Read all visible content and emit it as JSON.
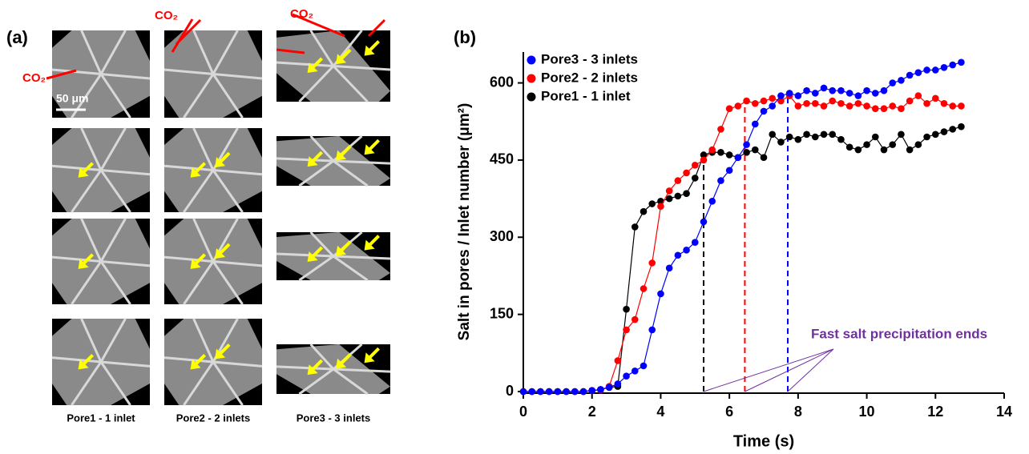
{
  "panel_a": {
    "label": "(a)",
    "co2": "CO₂",
    "scale_bar": "50 μm",
    "columns": [
      "Pore1 - 1 inlet",
      "Pore2 - 2 inlets",
      "Pore3 - 3 inlets"
    ]
  },
  "chart_data": {
    "type": "line",
    "panel_label": "(b)",
    "x_label": "Time (s)",
    "y_label": "Salt in pores / Inlet number (μm²)",
    "x": [
      0,
      0.25,
      0.5,
      0.75,
      1,
      1.25,
      1.5,
      1.75,
      2,
      2.25,
      2.5,
      2.75,
      3,
      3.25,
      3.5,
      3.75,
      4,
      4.25,
      4.5,
      4.75,
      5,
      5.25,
      5.5,
      5.75,
      6,
      6.25,
      6.5,
      6.75,
      7,
      7.25,
      7.5,
      7.75,
      8,
      8.25,
      8.5,
      8.75,
      9,
      9.25,
      9.5,
      9.75,
      10,
      10.25,
      10.5,
      10.75,
      11,
      11.25,
      11.5,
      11.75,
      12,
      12.25,
      12.5,
      12.75
    ],
    "series": [
      {
        "name": "Pore3 - 3 inlets",
        "color": "#0000ff",
        "values": [
          0,
          0,
          0,
          0,
          0,
          0,
          0,
          0,
          2,
          4,
          8,
          15,
          30,
          40,
          50,
          120,
          190,
          240,
          265,
          275,
          290,
          330,
          370,
          410,
          430,
          455,
          480,
          520,
          545,
          555,
          575,
          580,
          575,
          585,
          580,
          590,
          585,
          585,
          580,
          575,
          585,
          580,
          585,
          600,
          605,
          615,
          620,
          625,
          625,
          630,
          635,
          640
        ]
      },
      {
        "name": "Pore2 - 2 inlets",
        "color": "#ff0000",
        "values": [
          0,
          0,
          0,
          0,
          0,
          0,
          0,
          0,
          2,
          3,
          10,
          60,
          120,
          140,
          200,
          250,
          360,
          390,
          410,
          425,
          440,
          450,
          470,
          510,
          550,
          555,
          565,
          560,
          565,
          570,
          565,
          575,
          555,
          560,
          560,
          555,
          565,
          560,
          555,
          560,
          555,
          550,
          550,
          555,
          550,
          565,
          575,
          560,
          570,
          560,
          555,
          555
        ]
      },
      {
        "name": "Pore1 - 1 inlet",
        "color": "#000000",
        "values": [
          0,
          0,
          0,
          0,
          0,
          0,
          0,
          0,
          2,
          4,
          8,
          10,
          160,
          320,
          350,
          365,
          370,
          375,
          380,
          385,
          415,
          460,
          465,
          465,
          460,
          455,
          465,
          470,
          455,
          500,
          485,
          495,
          490,
          500,
          495,
          500,
          500,
          490,
          475,
          470,
          480,
          495,
          470,
          480,
          500,
          470,
          480,
          495,
          500,
          505,
          510,
          515
        ]
      }
    ],
    "vlines": [
      {
        "x": 5.25,
        "y": 465,
        "color": "#000000"
      },
      {
        "x": 6.45,
        "y": 570,
        "color": "#ff0000"
      },
      {
        "x": 7.7,
        "y": 580,
        "color": "#0000ff"
      }
    ],
    "annotation": "Fast salt precipitation ends",
    "annotation_color": "#7030a0",
    "xlim": [
      0,
      14
    ],
    "xticks": [
      0,
      2,
      4,
      6,
      8,
      10,
      12,
      14
    ],
    "ylim": [
      0,
      660
    ],
    "yticks": [
      0,
      150,
      300,
      450,
      600
    ]
  }
}
